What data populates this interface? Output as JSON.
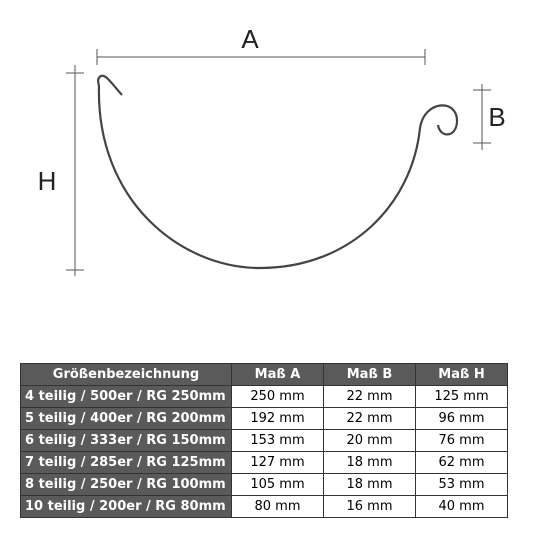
{
  "diagram": {
    "labels": {
      "a": "A",
      "b": "B",
      "h": "H"
    }
  },
  "table": {
    "header": [
      "Größenbezeichnung",
      "Maß A",
      "Maß B",
      "Maß H"
    ],
    "rows": [
      [
        "4 teilig / 500er / RG 250mm",
        "250 mm",
        "22 mm",
        "125 mm"
      ],
      [
        "5 teilig / 400er / RG 200mm",
        "192 mm",
        "22 mm",
        "96 mm"
      ],
      [
        "6 teilig / 333er / RG 150mm",
        "153 mm",
        "20 mm",
        "76 mm"
      ],
      [
        "7 teilig / 285er / RG 125mm",
        "127 mm",
        "18 mm",
        "62 mm"
      ],
      [
        "8 teilig / 250er / RG 100mm",
        "105 mm",
        "18 mm",
        "53 mm"
      ],
      [
        "10 teilig / 200er / RG 80mm",
        "80 mm",
        "16 mm",
        "40 mm"
      ]
    ]
  }
}
